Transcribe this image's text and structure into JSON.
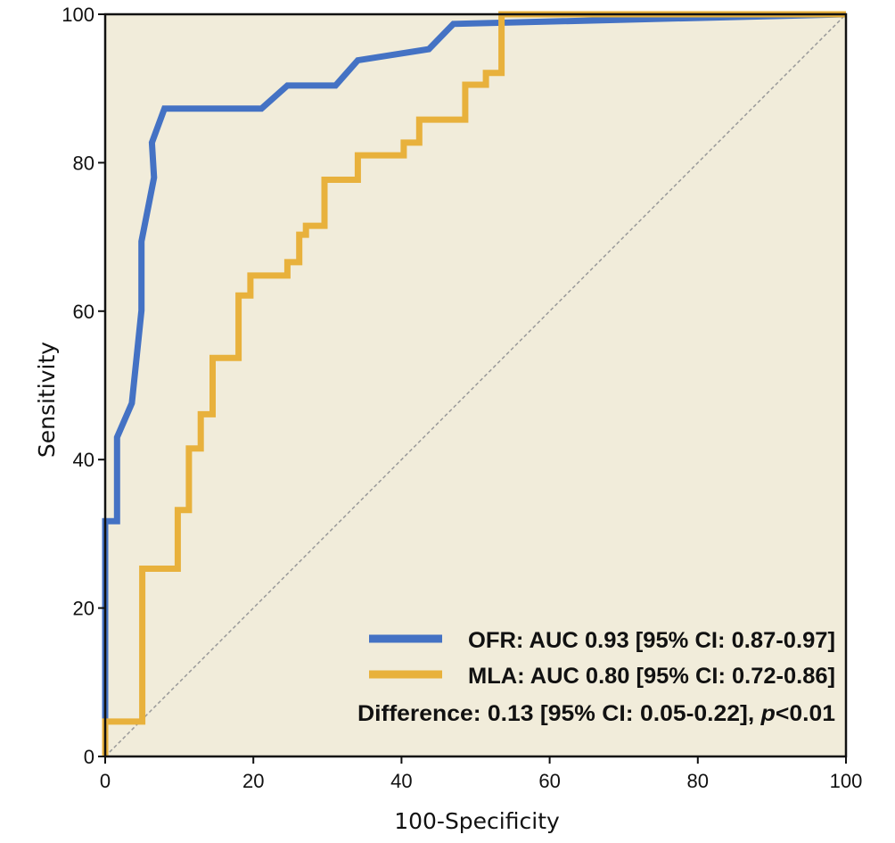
{
  "chart_data": {
    "type": "line",
    "title": "",
    "xlabel": "100-Specificity",
    "ylabel": "Sensitivity",
    "xlim": [
      0,
      100
    ],
    "ylim": [
      0,
      100
    ],
    "xticks": [
      "0",
      "20",
      "40",
      "60",
      "80",
      "100"
    ],
    "yticks": [
      "0",
      "20",
      "40",
      "60",
      "80",
      "100"
    ],
    "grid": false,
    "reference_line": {
      "x": [
        0,
        100
      ],
      "y": [
        0,
        100
      ]
    },
    "series": [
      {
        "name": "OFR",
        "color": "#4472c4",
        "x": [
          0,
          0,
          0,
          1.6,
          1.6,
          3.6,
          4.9,
          4.9,
          6.6,
          6.3,
          8.0,
          21.1,
          24.6,
          31.1,
          34.1,
          43.7,
          47.0,
          100
        ],
        "y": [
          0,
          4,
          31.7,
          31.7,
          43.0,
          47.6,
          60.1,
          69.4,
          78.0,
          82.7,
          87.3,
          87.3,
          90.4,
          90.4,
          93.8,
          95.3,
          98.7,
          100
        ]
      },
      {
        "name": "MLA",
        "color": "#e8b13c",
        "x": [
          0,
          0,
          5.0,
          5.0,
          9.8,
          9.8,
          11.3,
          11.3,
          12.9,
          12.9,
          14.5,
          14.5,
          18.0,
          18.0,
          19.6,
          19.6,
          24.6,
          24.6,
          26.2,
          26.2,
          27.1,
          27.1,
          29.6,
          29.6,
          34.1,
          34.1,
          40.3,
          40.3,
          42.4,
          42.4,
          48.6,
          48.6,
          51.4,
          51.4,
          53.5,
          53.5,
          100
        ],
        "y": [
          0,
          4.7,
          4.7,
          25.3,
          25.3,
          33.2,
          33.2,
          41.5,
          41.5,
          46.1,
          46.1,
          53.7,
          53.7,
          62.1,
          62.1,
          64.8,
          64.8,
          66.6,
          66.6,
          70.3,
          70.3,
          71.5,
          71.5,
          77.7,
          77.7,
          81.0,
          81.0,
          82.7,
          82.7,
          85.8,
          85.8,
          90.5,
          90.5,
          92.1,
          92.1,
          100,
          100
        ]
      }
    ],
    "legend": {
      "position": "bottom-right",
      "entries": [
        {
          "label": "OFR: AUC 0.93 [95% CI: 0.87-0.97]",
          "color": "#4472c4"
        },
        {
          "label": "MLA: AUC 0.80 [95% CI: 0.72-0.86]",
          "color": "#e8b13c"
        }
      ],
      "difference_prefix": "Difference: 0.13 [95% CI: 0.05-0.22], ",
      "difference_p": "p",
      "difference_suffix": "<0.01"
    },
    "colors": {
      "plot_background": "#f1ecda",
      "reference_line": "#999999",
      "axes": "#111111"
    }
  }
}
